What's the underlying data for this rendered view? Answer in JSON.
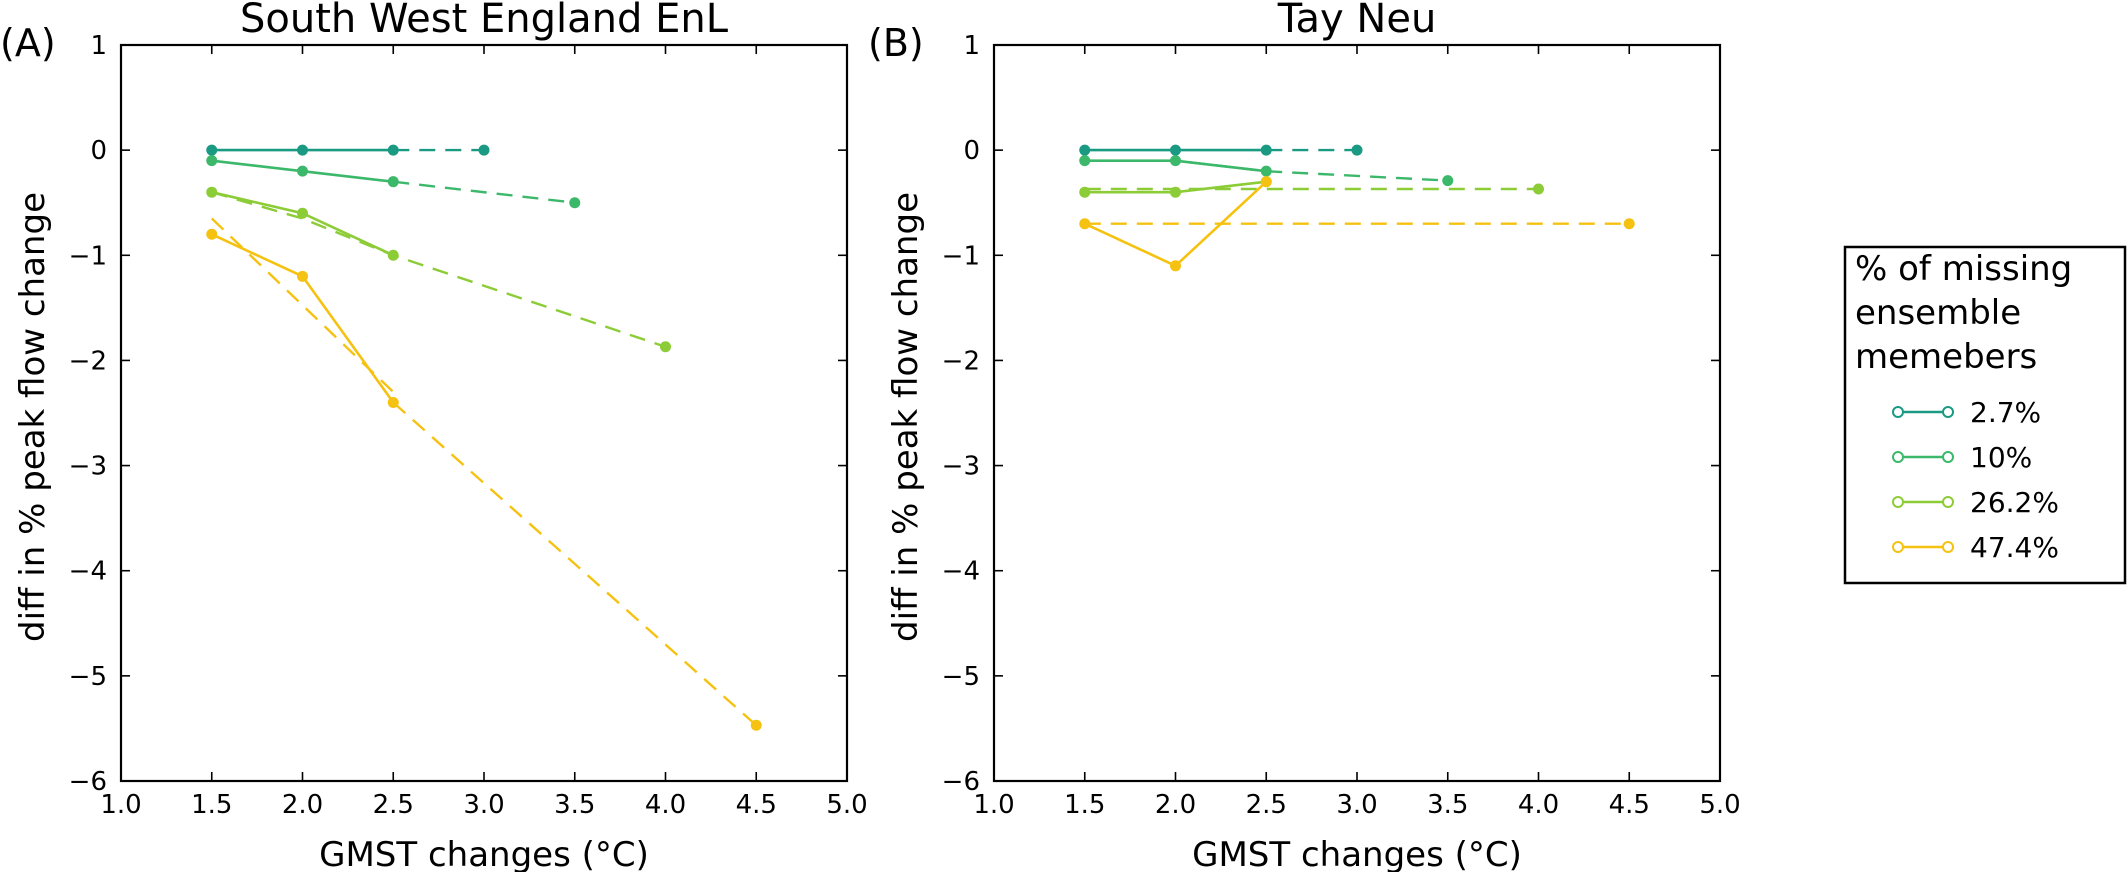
{
  "chart_data": [
    {
      "type": "line",
      "panel_label": "(A)",
      "title": "South West England  EnL",
      "xlabel": "GMST changes (°C)",
      "ylabel": "diff in % peak flow change",
      "xlim": [
        1.0,
        5.0
      ],
      "ylim": [
        -6,
        1
      ],
      "x_ticks": [
        "1.0",
        "1.5",
        "2.0",
        "2.5",
        "3.0",
        "3.5",
        "4.0",
        "4.5",
        "5.0"
      ],
      "y_ticks": [
        "1",
        "0",
        "−1",
        "−2",
        "−3",
        "−4",
        "−5",
        "−6"
      ],
      "grid": false,
      "series": [
        {
          "name": "2.7%",
          "color": "#1a9a82",
          "x": [
            1.5,
            2.0,
            2.5
          ],
          "values": [
            0.0,
            0.0,
            0.0
          ],
          "dashed": {
            "x": [
              2.5,
              3.0
            ],
            "values": [
              0.0,
              0.0
            ]
          }
        },
        {
          "name": "10%",
          "color": "#3cb86b",
          "x": [
            1.5,
            2.0,
            2.5
          ],
          "values": [
            -0.1,
            -0.2,
            -0.3
          ],
          "dashed": {
            "x": [
              2.5,
              3.5
            ],
            "values": [
              -0.3,
              -0.5
            ]
          }
        },
        {
          "name": "26.2%",
          "color": "#8ccc36",
          "x": [
            1.5,
            2.0,
            2.5
          ],
          "values": [
            -0.4,
            -0.6,
            -1.0
          ],
          "dashed": {
            "x": [
              1.5,
              2.0,
              2.5,
              4.0
            ],
            "values": [
              -0.4,
              -0.65,
              -1.0,
              -1.87
            ]
          }
        },
        {
          "name": "47.4%",
          "color": "#f5c211",
          "x": [
            1.5,
            2.0,
            2.5
          ],
          "values": [
            -0.8,
            -1.2,
            -2.4
          ],
          "dashed": {
            "x": [
              1.5,
              2.5
            ],
            "values": [
              -0.65,
              -2.3
            ],
            "x2": [
              2.5,
              4.5
            ],
            "values2": [
              -2.4,
              -5.47
            ]
          }
        }
      ]
    },
    {
      "type": "line",
      "panel_label": "(B)",
      "title": "Tay  Neu",
      "xlabel": "GMST changes (°C)",
      "ylabel": "diff in % peak flow change",
      "xlim": [
        1.0,
        5.0
      ],
      "ylim": [
        -6,
        1
      ],
      "x_ticks": [
        "1.0",
        "1.5",
        "2.0",
        "2.5",
        "3.0",
        "3.5",
        "4.0",
        "4.5",
        "5.0"
      ],
      "y_ticks": [
        "1",
        "0",
        "−1",
        "−2",
        "−3",
        "−4",
        "−5",
        "−6"
      ],
      "grid": false,
      "series": [
        {
          "name": "2.7%",
          "color": "#1a9a82",
          "x": [
            1.5,
            2.0,
            2.5
          ],
          "values": [
            0.0,
            0.0,
            0.0
          ],
          "dashed": {
            "x": [
              2.5,
              3.0
            ],
            "values": [
              0.0,
              0.0
            ]
          }
        },
        {
          "name": "10%",
          "color": "#3cb86b",
          "x": [
            1.5,
            2.0,
            2.5
          ],
          "values": [
            -0.1,
            -0.1,
            -0.2
          ],
          "dashed": {
            "x": [
              1.5,
              2.0,
              2.5,
              3.5
            ],
            "values": [
              -0.1,
              -0.1,
              -0.2,
              -0.29
            ]
          }
        },
        {
          "name": "26.2%",
          "color": "#8ccc36",
          "x": [
            1.5,
            2.0,
            2.5
          ],
          "values": [
            -0.4,
            -0.4,
            -0.3
          ],
          "dashed": {
            "x": [
              1.5,
              4.0
            ],
            "values": [
              -0.37,
              -0.37
            ]
          }
        },
        {
          "name": "47.4%",
          "color": "#f5c211",
          "x": [
            1.5,
            2.0,
            2.5
          ],
          "values": [
            -0.7,
            -1.1,
            -0.3
          ],
          "dashed": {
            "x": [
              1.5,
              4.5
            ],
            "values": [
              -0.7,
              -0.7
            ]
          }
        }
      ]
    }
  ],
  "legend": {
    "title_lines": [
      "% of missing",
      "ensemble",
      "memebers"
    ],
    "placement": "right",
    "items": [
      {
        "label": "2.7%",
        "color": "#1a9a82"
      },
      {
        "label": "10%",
        "color": "#3cb86b"
      },
      {
        "label": "26.2%",
        "color": "#8ccc36"
      },
      {
        "label": "47.4%",
        "color": "#f5c211"
      }
    ]
  }
}
